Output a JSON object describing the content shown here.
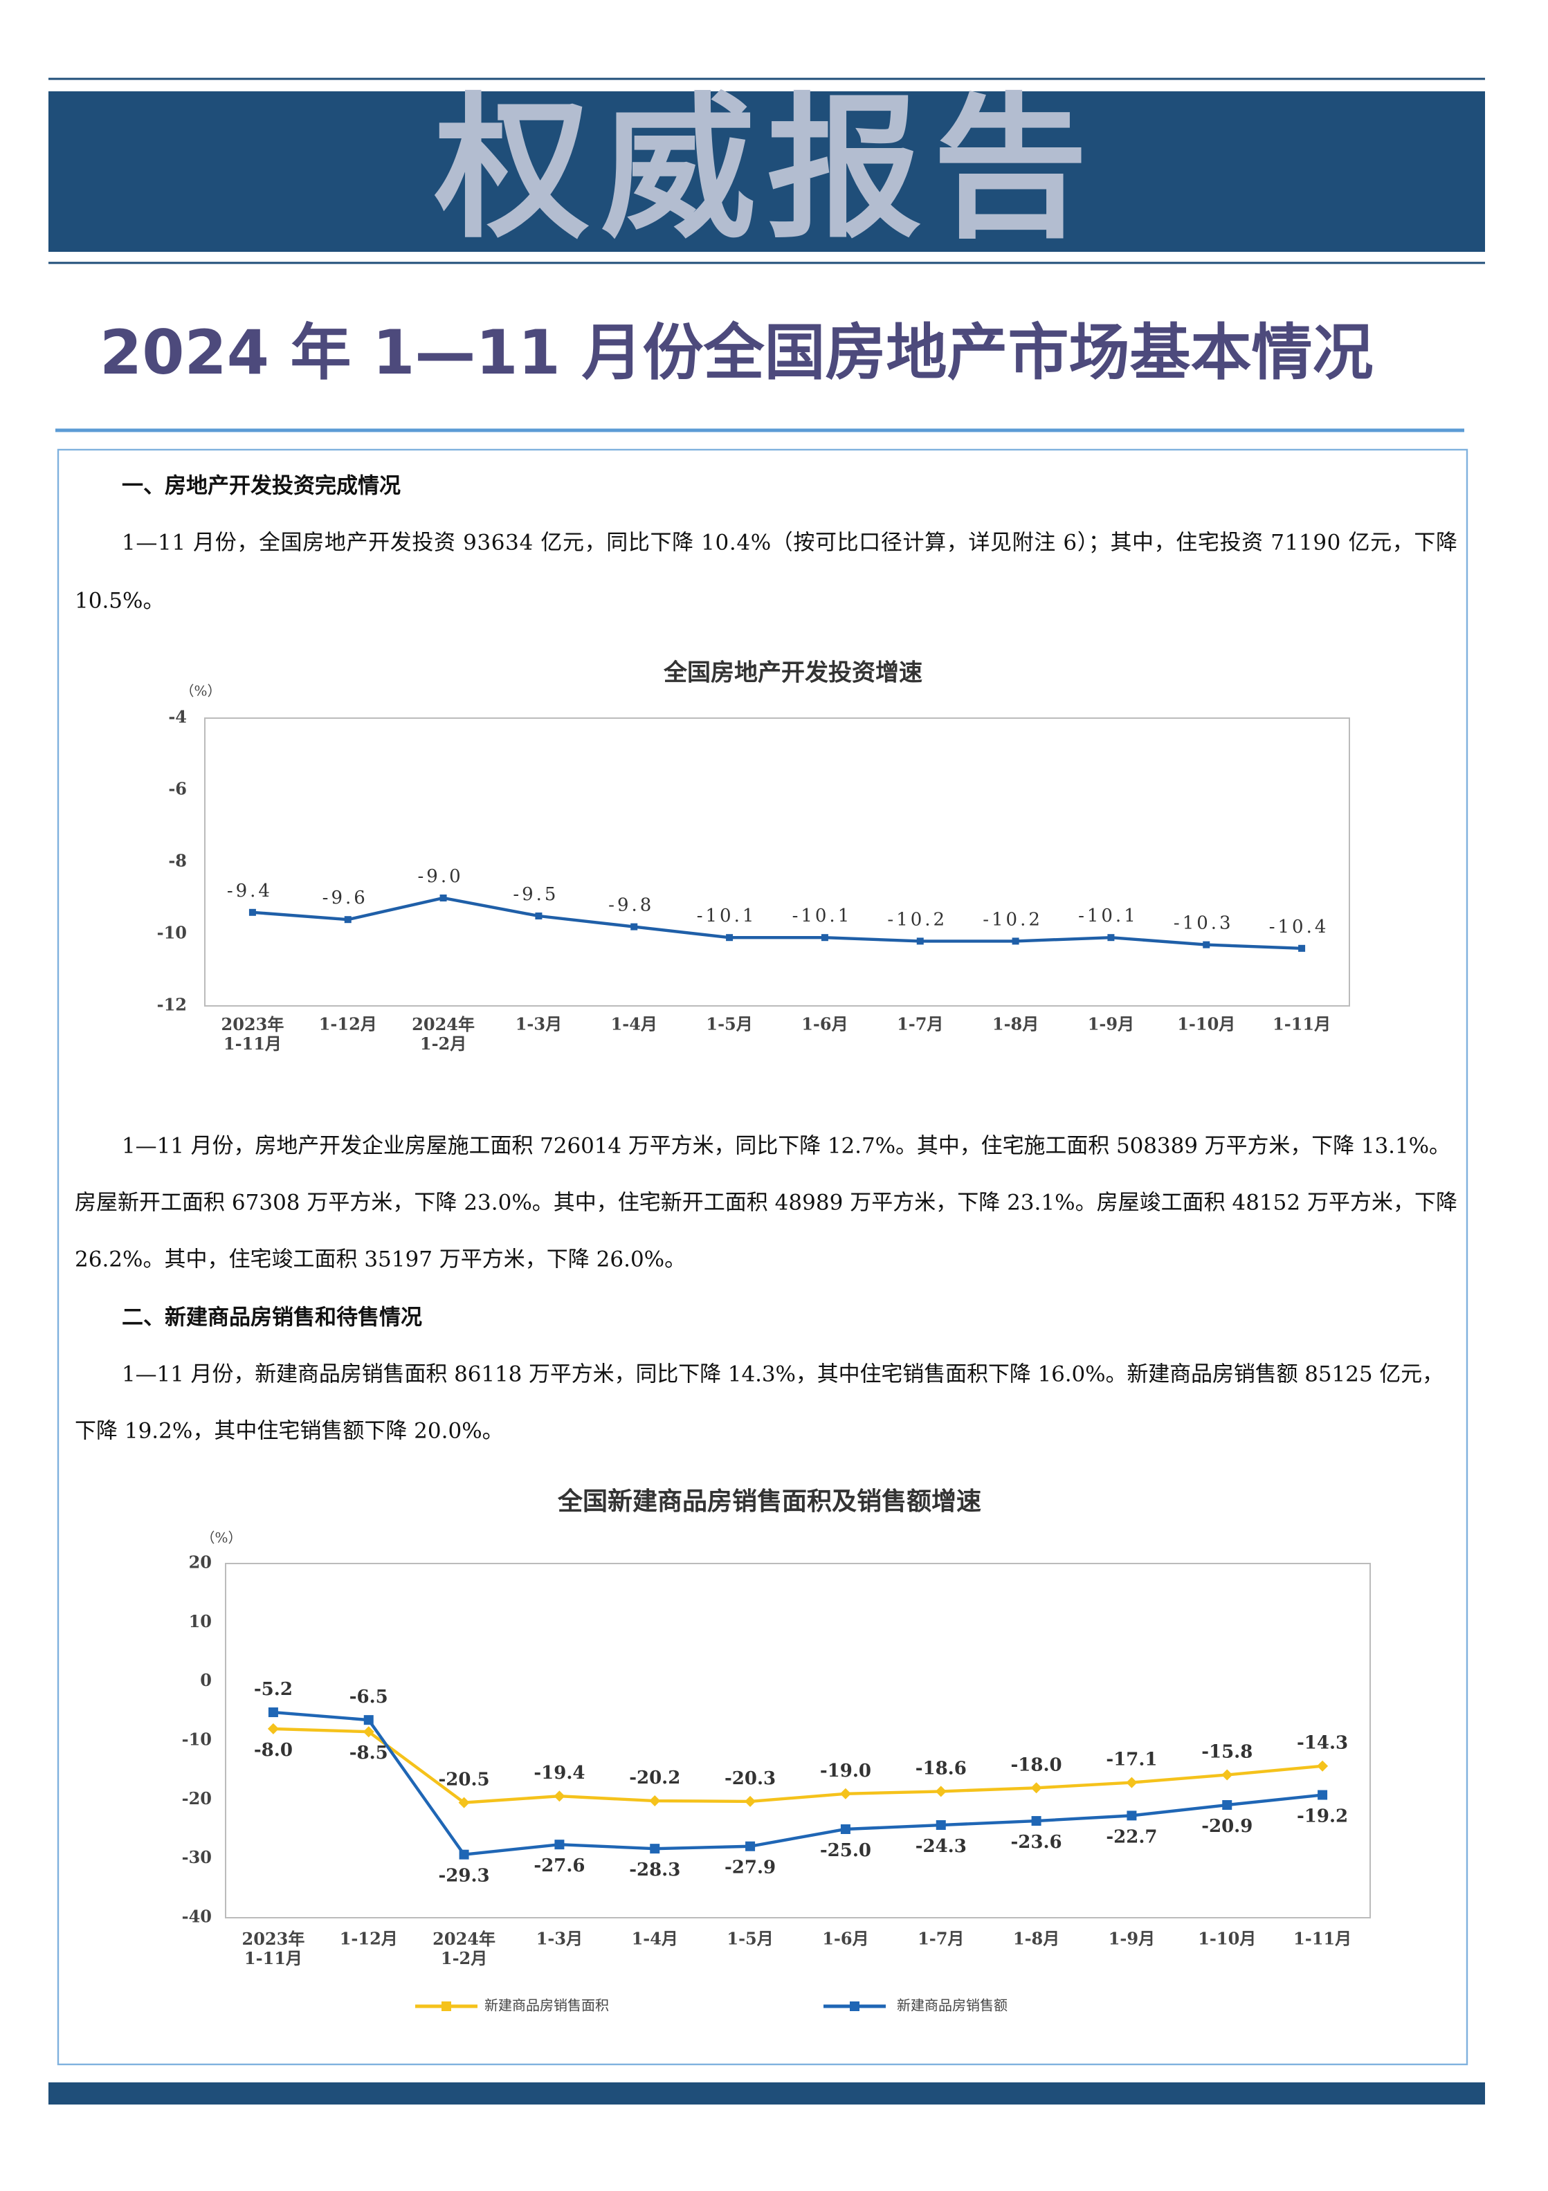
{
  "header": {
    "banner": "权威报告",
    "title": "2024 年 1—11 月份全国房地产市场基本情况"
  },
  "sections": [
    {
      "heading": "一、房地产开发投资完成情况",
      "paragraphs": [
        [
          "1—11 月份，全国房地产开发投资 93634 亿元，同比下降 10.4%（按可比口径计算，详见附注 6）；其中，住宅投资 71190 亿元，下降",
          "10.5%。"
        ],
        [
          "1—11 月份，房地产开发企业房屋施工面积 726014 万平方米，同比下降 12.7%。其中，住宅施工面积 508389 万平方米，下降 13.1%。",
          "房屋新开工面积 67308 万平方米，下降 23.0%。其中，住宅新开工面积 48989 万平方米，下降 23.1%。房屋竣工面积 48152 万平方米，下降",
          "26.2%。其中，住宅竣工面积 35197 万平方米，下降 26.0%。"
        ]
      ]
    },
    {
      "heading": "二、新建商品房销售和待售情况",
      "paragraphs": [
        [
          "1—11 月份，新建商品房销售面积 86118 万平方米，同比下降 14.3%，其中住宅销售面积下降 16.0%。新建商品房销售额 85125 亿元，",
          "下降 19.2%，其中住宅销售额下降 20.0%。"
        ]
      ]
    }
  ],
  "chart_data": [
    {
      "type": "line",
      "title": "全国房地产开发投资增速",
      "unit": "（%）",
      "categories": [
        "2023年\n1-11月",
        "1-12月",
        "2024年\n1-2月",
        "1-3月",
        "1-4月",
        "1-5月",
        "1-6月",
        "1-7月",
        "1-8月",
        "1-9月",
        "1-10月",
        "1-11月"
      ],
      "series": [
        {
          "color": "#1f5fa8",
          "values": [
            -9.4,
            -9.6,
            -9.0,
            -9.5,
            -9.8,
            -10.1,
            -10.1,
            -10.2,
            -10.2,
            -10.1,
            -10.3,
            -10.4
          ],
          "value_labels": [
            "-9.4",
            "-9.6",
            "-9.0",
            "-9.5",
            "-9.8",
            "-10.1",
            "-10.1",
            "-10.2",
            "-10.2",
            "-10.1",
            "-10.3",
            "-10.4"
          ]
        }
      ],
      "ylim": [
        -12,
        -4
      ],
      "yticks": [
        -4,
        -6,
        -8,
        -10,
        -12
      ],
      "grid": false
    },
    {
      "type": "line",
      "title": "全国新建商品房销售面积及销售额增速",
      "unit": "（%）",
      "categories": [
        "2023年\n1-11月",
        "1-12月",
        "2024年\n1-2月",
        "1-3月",
        "1-4月",
        "1-5月",
        "1-6月",
        "1-7月",
        "1-8月",
        "1-9月",
        "1-10月",
        "1-11月"
      ],
      "series": [
        {
          "name": "新建商品房销售面积",
          "color": "#f5c21b",
          "values": [
            -8.0,
            -8.5,
            -20.5,
            -19.4,
            -20.2,
            -20.3,
            -19.0,
            -18.6,
            -18.0,
            -17.1,
            -15.8,
            -14.3
          ],
          "value_labels": [
            "-8.0",
            "-8.5",
            "-20.5",
            "-19.4",
            "-20.2",
            "-20.3",
            "-19.0",
            "-18.6",
            "-18.0",
            "-17.1",
            "-15.8",
            "-14.3"
          ]
        },
        {
          "name": "新建商品房销售额",
          "color": "#1f66b5",
          "values": [
            -5.2,
            -6.5,
            -29.3,
            -27.6,
            -28.3,
            -27.9,
            -25.0,
            -24.3,
            -23.6,
            -22.7,
            -20.9,
            -19.2
          ],
          "value_labels": [
            "-5.2",
            "-6.5",
            "-29.3",
            "-27.6",
            "-28.3",
            "-27.9",
            "-25.0",
            "-24.3",
            "-23.6",
            "-22.7",
            "-20.9",
            "-19.2"
          ]
        }
      ],
      "ylim": [
        -40,
        20
      ],
      "yticks": [
        20,
        10,
        0,
        -10,
        -20,
        -30,
        -40
      ],
      "grid": false,
      "legend": "bottom"
    }
  ]
}
